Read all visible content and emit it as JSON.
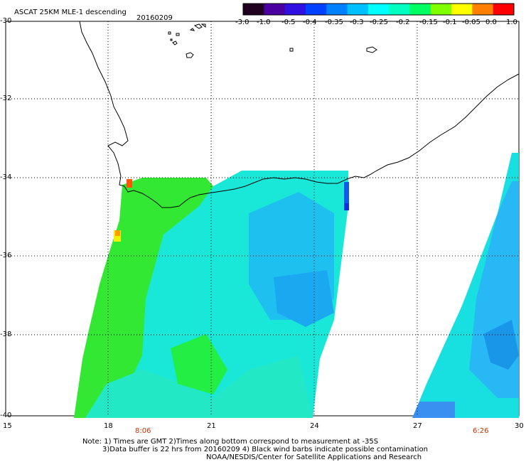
{
  "header": {
    "title": "ASCAT 25KM MLE-1 descending",
    "date": "20160209"
  },
  "colorbar": {
    "labels": [
      "-3.0",
      "-1.0",
      "-0.5",
      "-0.4",
      "-0.35",
      "-0.3",
      "-0.25",
      "-0.2",
      "-0.15",
      "-0.1",
      "-0.05",
      "0.0",
      "1.0"
    ],
    "colors": [
      "#200020",
      "#4b00a0",
      "#3010e0",
      "#0040ff",
      "#0080ff",
      "#00c0ff",
      "#00ffff",
      "#00ffc0",
      "#00ff60",
      "#80ff00",
      "#ffff00",
      "#ff8000",
      "#ff0000"
    ]
  },
  "axes": {
    "lat_labels": [
      "-30",
      "-32",
      "-34",
      "-36",
      "-38",
      "-40"
    ],
    "lon_labels": [
      "15",
      "18",
      "21",
      "24",
      "27",
      "30"
    ]
  },
  "time_marks": [
    "8:06",
    "6:26"
  ],
  "notes": {
    "line1": "Note: 1) Times are GMT 2)Times along bottom correspond to measurement at -35S",
    "line2": "3)Data buffer is 22 hrs from 20160209 4) Black wind barbs indicate possible contamination",
    "line3": "NOAA/NESDIS/Center for Satellite Applications and Research"
  },
  "swath_colors": {
    "green": "#22ee22",
    "cyan": "#11eedd",
    "blue": "#11bbff"
  }
}
